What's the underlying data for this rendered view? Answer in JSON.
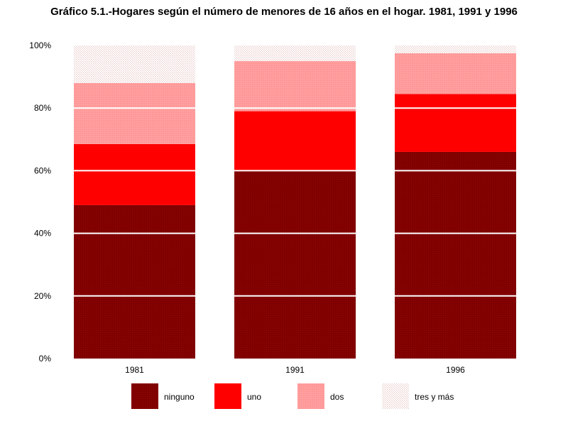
{
  "chart_data": {
    "type": "bar",
    "stacked": true,
    "title": "Gráfico 5.1.-Hogares según el número de menores de 16 años en el hogar. 1981, 1991 y 1996",
    "categories": [
      "1981",
      "1991",
      "1996"
    ],
    "series": [
      {
        "name": "ninguno",
        "color": "#800000",
        "values": [
          49,
          60,
          66
        ]
      },
      {
        "name": "uno",
        "color": "#ff0000",
        "values": [
          19.5,
          19,
          18.5
        ]
      },
      {
        "name": "dos",
        "color": "#ff9999",
        "values": [
          19.5,
          16,
          13
        ]
      },
      {
        "name": "tres y más",
        "color": "#f2dcdc",
        "values": [
          12,
          5,
          2.5
        ]
      }
    ],
    "ylim": [
      0,
      100
    ],
    "yticks": [
      0,
      20,
      40,
      60,
      80,
      100
    ],
    "ytick_labels": [
      "0%",
      "20%",
      "40%",
      "60%",
      "80%",
      "100%"
    ],
    "xlabel": "",
    "ylabel": "",
    "grid": true,
    "legend_position": "bottom"
  }
}
